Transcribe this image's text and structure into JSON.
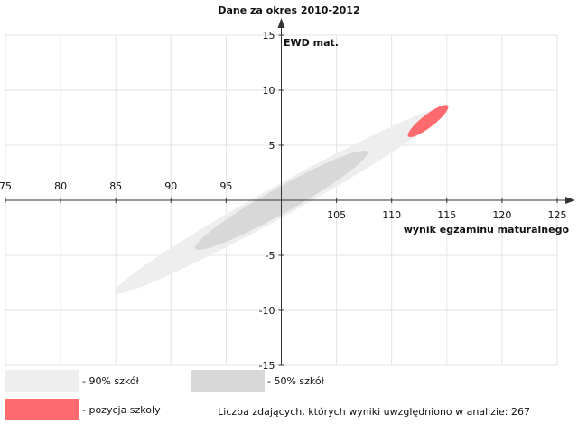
{
  "chart_data": {
    "type": "scatter",
    "title": "Dane za okres 2010-2012",
    "xlabel": "wynik egzaminu maturalnego",
    "ylabel": "EWD mat.",
    "xlim": [
      75,
      125
    ],
    "ylim": [
      -15,
      15
    ],
    "x_ticks": [
      "75",
      "80",
      "85",
      "90",
      "95",
      "105",
      "110",
      "115",
      "120",
      "125"
    ],
    "y_ticks": [
      "15",
      "10",
      "5",
      "-5",
      "-10",
      "-15"
    ],
    "grid": true,
    "regions": [
      {
        "name": "- 90% szkół",
        "color": "#eeeeee",
        "center": [
          100,
          0
        ],
        "x_extent": [
          84.9,
          115.1
        ],
        "y_extent": [
          -8.4,
          8.4
        ]
      },
      {
        "name": "- 50% szkół",
        "color": "#d8d8d8",
        "center": [
          100,
          0
        ],
        "x_extent": [
          92.2,
          107.8
        ],
        "y_extent": [
          -4.4,
          4.4
        ]
      },
      {
        "name": "- pozycja szkoły",
        "color": "#ff6a6f",
        "center": [
          113.3,
          7.2
        ],
        "x_extent": [
          111.5,
          115.1
        ],
        "y_extent": [
          5.6,
          8.6
        ]
      }
    ],
    "footnote": "Liczba zdających, których wyniki uwzględniono w analizie: 267"
  }
}
